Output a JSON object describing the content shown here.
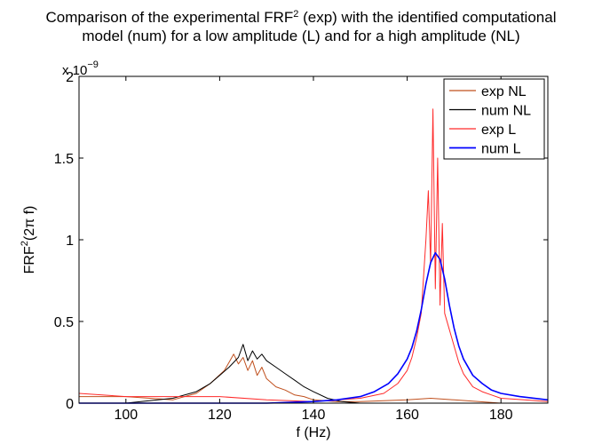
{
  "chart_data": {
    "type": "line",
    "title_line1_pre": "Comparison of the experimental FRF",
    "title_line1_sup": "2",
    "title_line1_post": " (exp) with the identified computational",
    "title_line2": "model (num) for a low amplitude (L) and for a high amplitude (NL)",
    "xlabel": "f (Hz)",
    "ylabel_pre": "FRF",
    "ylabel_sup": "2",
    "ylabel_post": "(2π f)",
    "y_multiplier_base": "x 10",
    "y_multiplier_exp": "−9",
    "xlim": [
      90,
      190
    ],
    "ylim": [
      0,
      2
    ],
    "xticks": [
      100,
      120,
      140,
      160,
      180
    ],
    "yticks": [
      0,
      0.5,
      1,
      1.5,
      2
    ],
    "ytick_labels": [
      "0",
      "0.5",
      "1",
      "1.5",
      "2"
    ],
    "grid": false,
    "legend_position": "top-right",
    "series": [
      {
        "name": "exp NL",
        "color": "#c0501e",
        "x": [
          90,
          100,
          110,
          115,
          118,
          121,
          122,
          123,
          124,
          125,
          126,
          127,
          128,
          129,
          130,
          132,
          134,
          136,
          138,
          140,
          145,
          150,
          160,
          165,
          170,
          180,
          190
        ],
        "y": [
          0.04,
          0.04,
          0.02,
          0.06,
          0.12,
          0.2,
          0.25,
          0.3,
          0.24,
          0.28,
          0.2,
          0.26,
          0.17,
          0.22,
          0.15,
          0.1,
          0.08,
          0.05,
          0.04,
          0.02,
          0.01,
          0.01,
          0.02,
          0.03,
          0.02,
          0.0,
          0.0
        ]
      },
      {
        "name": "num NL",
        "color": "#000000",
        "x": [
          90,
          100,
          110,
          115,
          118,
          120,
          122,
          124,
          125,
          126,
          127,
          128,
          129,
          130,
          132,
          134,
          136,
          138,
          140,
          143,
          146,
          150,
          160,
          170,
          180,
          190
        ],
        "y": [
          0.0,
          0.0,
          0.03,
          0.07,
          0.12,
          0.17,
          0.22,
          0.28,
          0.36,
          0.26,
          0.32,
          0.27,
          0.3,
          0.26,
          0.22,
          0.18,
          0.14,
          0.1,
          0.07,
          0.03,
          0.01,
          0.0,
          0.0,
          0.0,
          0.0,
          0.0
        ]
      },
      {
        "name": "exp L",
        "color": "#ff2a2a",
        "x": [
          90,
          100,
          110,
          120,
          130,
          140,
          145,
          150,
          155,
          158,
          160,
          161,
          162,
          163,
          164,
          164.5,
          165,
          165.5,
          166,
          166.5,
          167,
          167.5,
          168,
          169,
          170,
          171,
          172,
          174,
          176,
          178,
          180,
          185,
          190
        ],
        "y": [
          0.06,
          0.04,
          0.04,
          0.04,
          0.02,
          0.01,
          0.02,
          0.03,
          0.06,
          0.12,
          0.2,
          0.28,
          0.4,
          0.55,
          1.0,
          1.3,
          0.85,
          1.8,
          0.7,
          1.5,
          0.6,
          1.1,
          0.55,
          0.45,
          0.35,
          0.25,
          0.18,
          0.1,
          0.07,
          0.05,
          0.03,
          0.02,
          0.01
        ]
      },
      {
        "name": "num L",
        "color": "#0000ff",
        "x": [
          90,
          100,
          110,
          120,
          130,
          140,
          145,
          150,
          153,
          156,
          158,
          160,
          161,
          162,
          163,
          164,
          165,
          166,
          167,
          168,
          169,
          170,
          171,
          172,
          174,
          176,
          178,
          180,
          184,
          190
        ],
        "y": [
          0.0,
          0.0,
          0.0,
          0.0,
          0.0,
          0.01,
          0.02,
          0.04,
          0.07,
          0.12,
          0.18,
          0.27,
          0.34,
          0.44,
          0.57,
          0.73,
          0.86,
          0.92,
          0.88,
          0.76,
          0.6,
          0.46,
          0.35,
          0.27,
          0.17,
          0.12,
          0.08,
          0.06,
          0.04,
          0.02
        ]
      }
    ]
  }
}
